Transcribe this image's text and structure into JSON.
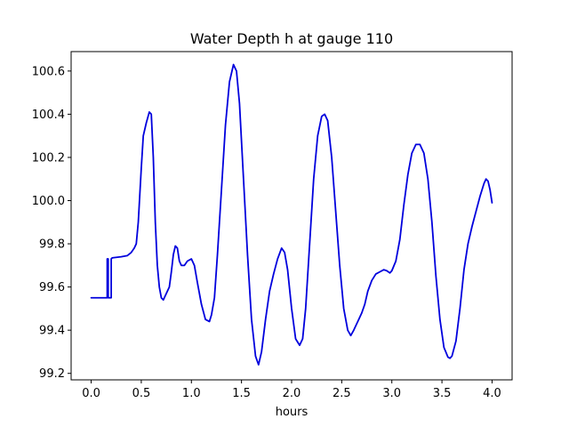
{
  "chart_data": {
    "type": "line",
    "title": "Water Depth h at gauge 110",
    "xlabel": "hours",
    "ylabel": "",
    "xlim": [
      -0.2,
      4.2
    ],
    "ylim": [
      99.17,
      100.69
    ],
    "xticks": [
      0.0,
      0.5,
      1.0,
      1.5,
      2.0,
      2.5,
      3.0,
      3.5,
      4.0
    ],
    "xtick_labels": [
      "0.0",
      "0.5",
      "1.0",
      "1.5",
      "2.0",
      "2.5",
      "3.0",
      "3.5",
      "4.0"
    ],
    "yticks": [
      99.2,
      99.4,
      99.6,
      99.8,
      100.0,
      100.2,
      100.4,
      100.6
    ],
    "ytick_labels": [
      "99.2",
      "99.4",
      "99.6",
      "99.8",
      "100.0",
      "100.2",
      "100.4",
      "100.6"
    ],
    "grid": false,
    "legend": "none",
    "series": [
      {
        "color": "#0000dd",
        "x": [
          0.0,
          0.16,
          0.16,
          0.17,
          0.17,
          0.2,
          0.2,
          0.21,
          0.3,
          0.36,
          0.4,
          0.43,
          0.45,
          0.47,
          0.5,
          0.52,
          0.55,
          0.58,
          0.6,
          0.62,
          0.64,
          0.66,
          0.68,
          0.7,
          0.72,
          0.75,
          0.78,
          0.8,
          0.82,
          0.84,
          0.86,
          0.88,
          0.9,
          0.93,
          0.96,
          1.0,
          1.03,
          1.06,
          1.1,
          1.14,
          1.18,
          1.2,
          1.23,
          1.26,
          1.3,
          1.34,
          1.38,
          1.42,
          1.45,
          1.48,
          1.52,
          1.56,
          1.6,
          1.64,
          1.67,
          1.7,
          1.74,
          1.78,
          1.82,
          1.86,
          1.9,
          1.93,
          1.96,
          2.0,
          2.04,
          2.08,
          2.11,
          2.14,
          2.18,
          2.22,
          2.26,
          2.3,
          2.33,
          2.36,
          2.4,
          2.44,
          2.48,
          2.52,
          2.56,
          2.59,
          2.62,
          2.66,
          2.7,
          2.73,
          2.76,
          2.8,
          2.84,
          2.88,
          2.92,
          2.95,
          2.98,
          3.0,
          3.04,
          3.08,
          3.12,
          3.16,
          3.2,
          3.24,
          3.28,
          3.32,
          3.36,
          3.4,
          3.44,
          3.48,
          3.52,
          3.56,
          3.58,
          3.6,
          3.64,
          3.68,
          3.72,
          3.76,
          3.8,
          3.84,
          3.88,
          3.92,
          3.94,
          3.96,
          3.98,
          4.0
        ],
        "y": [
          99.55,
          99.55,
          99.73,
          99.73,
          99.55,
          99.55,
          99.73,
          99.735,
          99.74,
          99.745,
          99.76,
          99.78,
          99.8,
          99.9,
          100.15,
          100.3,
          100.36,
          100.41,
          100.4,
          100.2,
          99.9,
          99.7,
          99.6,
          99.55,
          99.54,
          99.57,
          99.6,
          99.67,
          99.75,
          99.79,
          99.78,
          99.72,
          99.7,
          99.7,
          99.72,
          99.73,
          99.7,
          99.62,
          99.52,
          99.45,
          99.44,
          99.47,
          99.55,
          99.75,
          100.05,
          100.35,
          100.55,
          100.63,
          100.6,
          100.45,
          100.1,
          99.75,
          99.45,
          99.28,
          99.24,
          99.3,
          99.45,
          99.58,
          99.66,
          99.73,
          99.78,
          99.76,
          99.68,
          99.5,
          99.36,
          99.33,
          99.36,
          99.5,
          99.8,
          100.1,
          100.3,
          100.39,
          100.4,
          100.37,
          100.2,
          99.95,
          99.7,
          99.5,
          99.4,
          99.375,
          99.4,
          99.44,
          99.48,
          99.52,
          99.58,
          99.63,
          99.66,
          99.67,
          99.68,
          99.675,
          99.665,
          99.675,
          99.72,
          99.82,
          99.98,
          100.12,
          100.22,
          100.26,
          100.26,
          100.22,
          100.1,
          99.9,
          99.65,
          99.45,
          99.32,
          99.275,
          99.27,
          99.28,
          99.35,
          99.5,
          99.68,
          99.8,
          99.88,
          99.95,
          100.02,
          100.08,
          100.1,
          100.09,
          100.05,
          99.99
        ]
      }
    ]
  }
}
